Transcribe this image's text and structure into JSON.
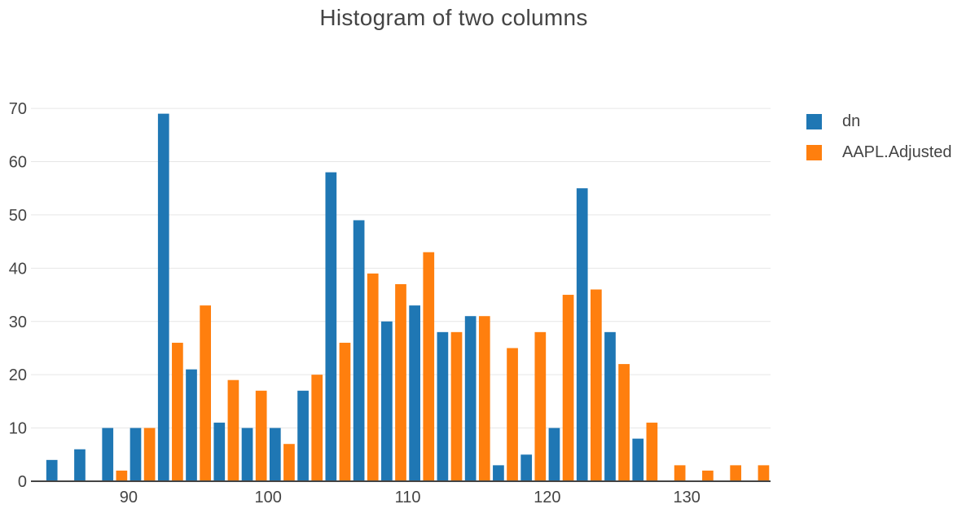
{
  "chart_data": {
    "type": "bar",
    "title": "Histogram of two columns",
    "xlabel": "",
    "ylabel": "",
    "bin_width": 2,
    "x": [
      84,
      86,
      88,
      90,
      92,
      94,
      96,
      98,
      100,
      102,
      104,
      106,
      108,
      110,
      112,
      114,
      116,
      118,
      120,
      122,
      124,
      126,
      128,
      130,
      132,
      134
    ],
    "xlim": [
      83,
      136
    ],
    "ylim": [
      0,
      72
    ],
    "xticks": [
      90,
      100,
      110,
      120,
      130
    ],
    "yticks": [
      0,
      10,
      20,
      30,
      40,
      50,
      60,
      70
    ],
    "grid": true,
    "legend_position": "top-right",
    "series": [
      {
        "name": "dn",
        "color": "#1f77b4",
        "values": [
          4,
          6,
          10,
          10,
          69,
          21,
          11,
          10,
          10,
          17,
          58,
          49,
          30,
          33,
          28,
          31,
          3,
          5,
          10,
          55,
          28,
          8,
          0,
          0,
          0,
          0
        ]
      },
      {
        "name": "AAPL.Adjusted",
        "color": "#ff7f0e",
        "values": [
          0,
          0,
          2,
          10,
          26,
          33,
          19,
          17,
          7,
          20,
          26,
          39,
          37,
          43,
          28,
          31,
          25,
          28,
          35,
          36,
          22,
          11,
          3,
          2,
          3,
          3
        ]
      }
    ]
  }
}
